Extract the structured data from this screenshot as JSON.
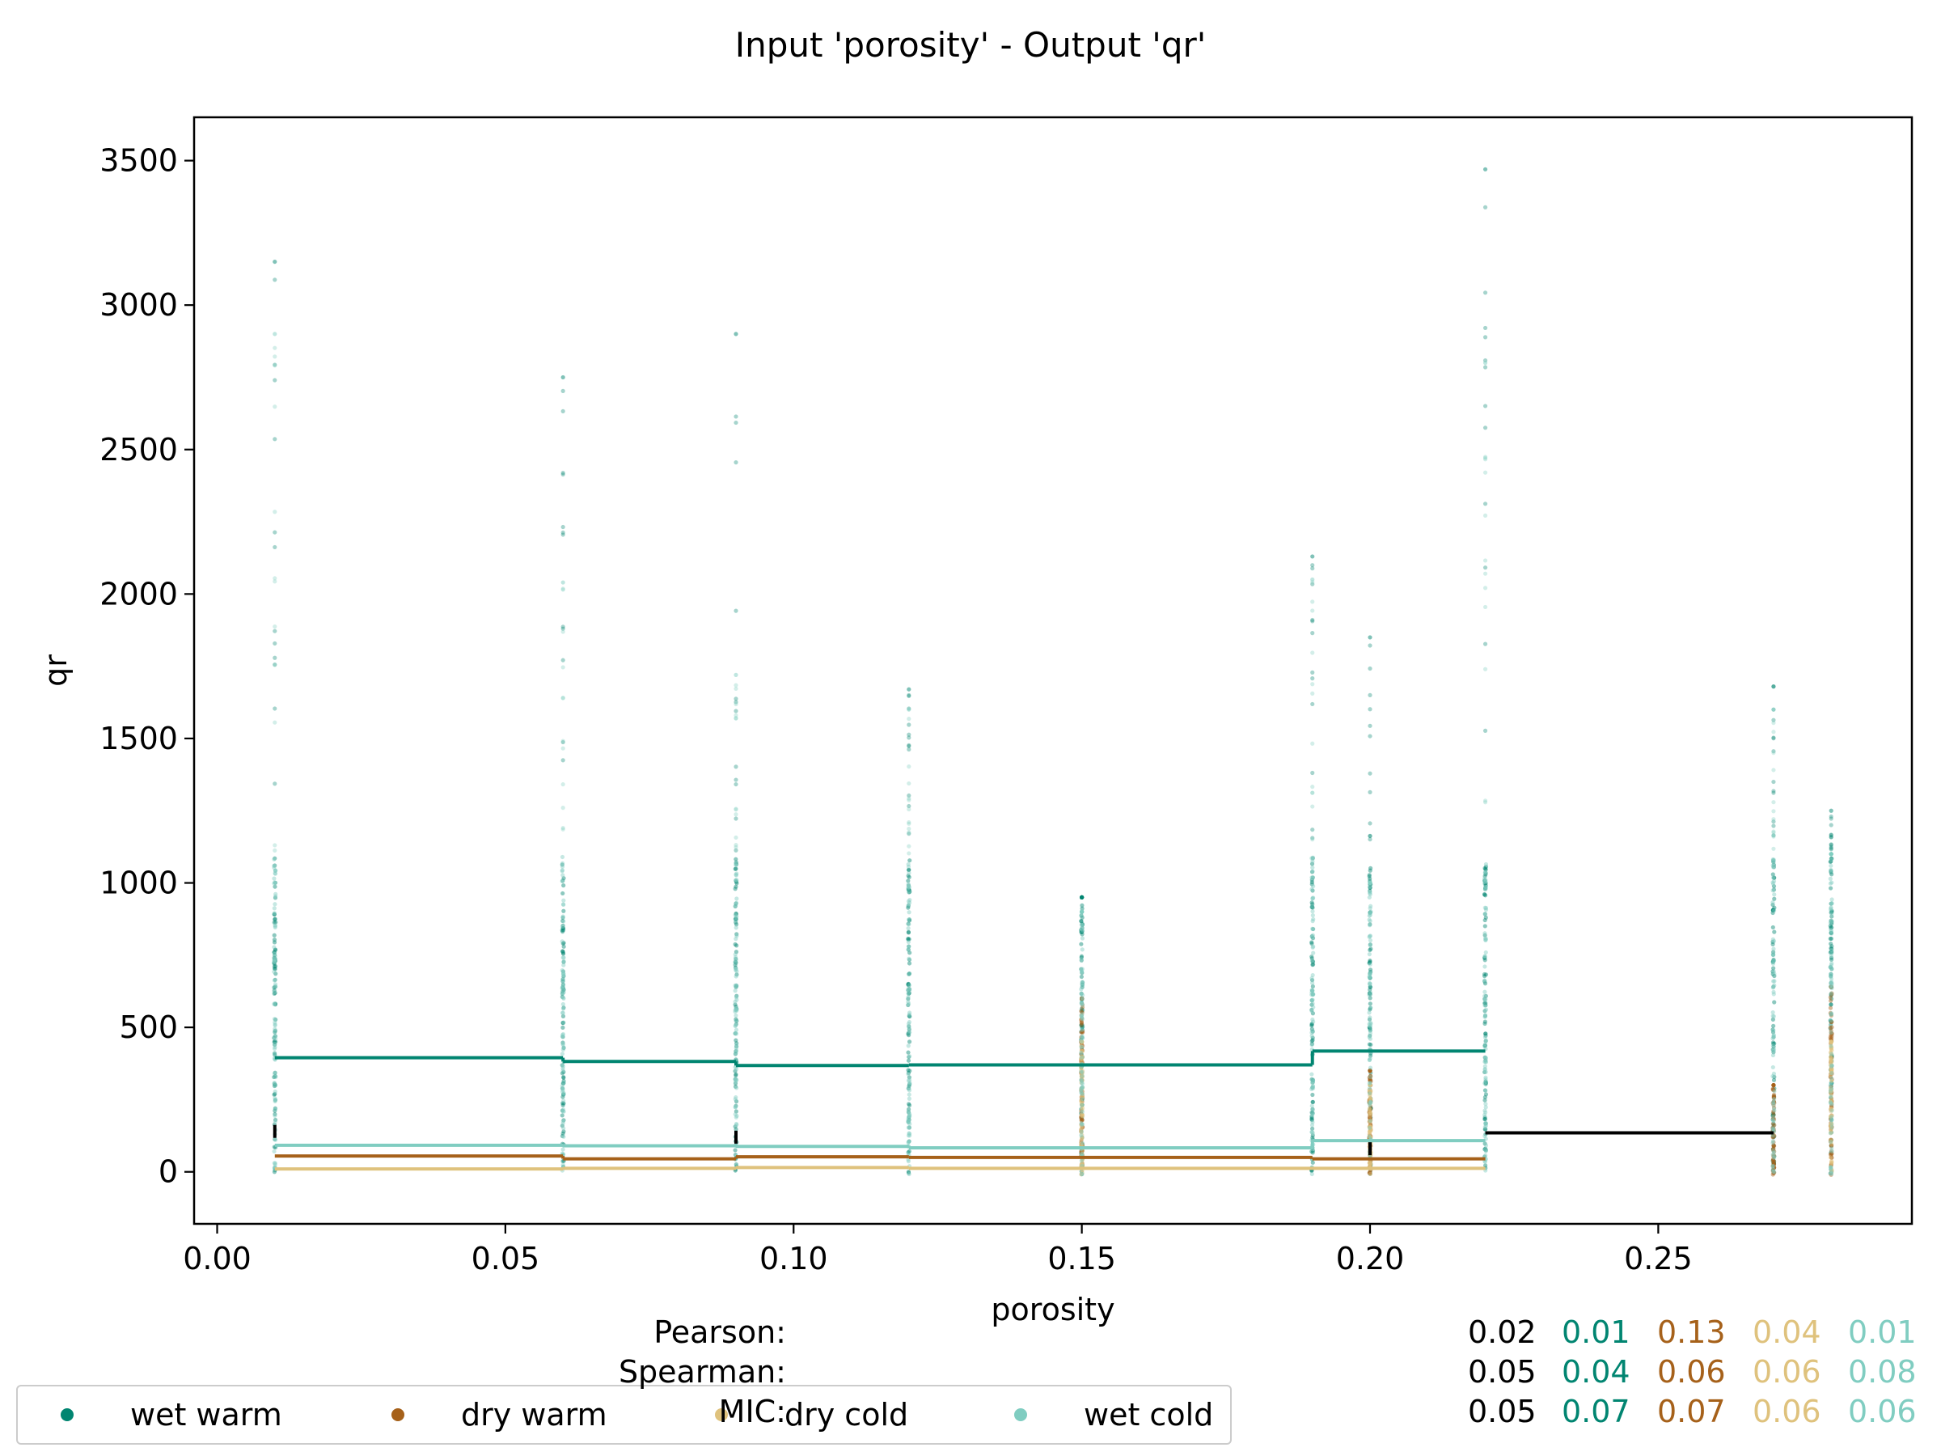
{
  "chart_data": {
    "type": "scatter",
    "title": "Input 'porosity' - Output 'qr'",
    "xlabel": "porosity",
    "ylabel": "qr",
    "xlim": [
      -0.004,
      0.294
    ],
    "ylim": [
      -180,
      3650
    ],
    "x_ticks": [
      "0.00",
      "0.05",
      "0.10",
      "0.15",
      "0.20",
      "0.25"
    ],
    "x_tick_values": [
      0.0,
      0.05,
      0.1,
      0.15,
      0.2,
      0.25
    ],
    "y_ticks": [
      "0",
      "500",
      "1000",
      "1500",
      "2000",
      "2500",
      "3000",
      "3500"
    ],
    "y_tick_values": [
      0,
      500,
      1000,
      1500,
      2000,
      2500,
      3000,
      3500
    ],
    "grid": false,
    "legend_position": "bottom-left",
    "series": [
      {
        "name": "wet warm",
        "color": "#018571",
        "x_levels": [
          0.01,
          0.06,
          0.09,
          0.12,
          0.15,
          0.19,
          0.2,
          0.22,
          0.27,
          0.28
        ],
        "scatter_max": [
          3150,
          2750,
          2900,
          1670,
          950,
          2130,
          1850,
          3470,
          1680,
          1250
        ],
        "mean_step": [
          [
            0.01,
            0.06,
            395
          ],
          [
            0.06,
            0.09,
            382
          ],
          [
            0.09,
            0.12,
            368
          ],
          [
            0.12,
            0.19,
            370
          ],
          [
            0.19,
            0.22,
            418
          ]
        ]
      },
      {
        "name": "dry warm",
        "color": "#a6611a",
        "x_levels": [
          0.15,
          0.2,
          0.27,
          0.28
        ],
        "scatter_max": [
          600,
          350,
          300,
          640
        ],
        "mean_step": [
          [
            0.01,
            0.06,
            55
          ],
          [
            0.06,
            0.09,
            45
          ],
          [
            0.09,
            0.12,
            52
          ],
          [
            0.12,
            0.19,
            50
          ],
          [
            0.19,
            0.22,
            45
          ]
        ]
      },
      {
        "name": "dry cold",
        "color": "#dfc27d",
        "x_levels": [
          0.15,
          0.2,
          0.28
        ],
        "scatter_max": [
          450,
          300,
          450
        ],
        "mean_step": [
          [
            0.01,
            0.06,
            10
          ],
          [
            0.06,
            0.09,
            12
          ],
          [
            0.09,
            0.12,
            15
          ],
          [
            0.12,
            0.22,
            12
          ]
        ]
      },
      {
        "name": "wet cold",
        "color": "#80cdc1",
        "x_levels": [
          0.01,
          0.06,
          0.09,
          0.12,
          0.15,
          0.19,
          0.2,
          0.22,
          0.27,
          0.28
        ],
        "scatter_max": [
          2900,
          2040,
          1720,
          1600,
          900,
          2050,
          1000,
          2800,
          1600,
          1100
        ],
        "mean_step": [
          [
            0.01,
            0.06,
            92
          ],
          [
            0.06,
            0.09,
            90
          ],
          [
            0.09,
            0.12,
            88
          ],
          [
            0.12,
            0.19,
            83
          ],
          [
            0.19,
            0.22,
            108
          ]
        ]
      },
      {
        "name": "overall",
        "color": "#000000",
        "mean_step": [
          [
            0.01,
            0.01,
            140
          ],
          [
            0.09,
            0.09,
            120
          ],
          [
            0.2,
            0.2,
            80
          ],
          [
            0.22,
            0.27,
            135
          ]
        ]
      }
    ],
    "stats": [
      {
        "label": "Pearson:",
        "overall": "0.02",
        "values": [
          "0.01",
          "0.13",
          "0.04",
          "0.01"
        ]
      },
      {
        "label": "Spearman:",
        "overall": "0.05",
        "values": [
          "0.04",
          "0.06",
          "0.06",
          "0.08"
        ]
      },
      {
        "label": "MIC:",
        "overall": "0.05",
        "values": [
          "0.07",
          "0.07",
          "0.06",
          "0.06"
        ]
      }
    ]
  },
  "legend": {
    "items": [
      {
        "label": "wet warm",
        "color": "#018571"
      },
      {
        "label": "dry warm",
        "color": "#a6611a"
      },
      {
        "label": "dry cold",
        "color": "#dfc27d"
      },
      {
        "label": "wet cold",
        "color": "#80cdc1"
      }
    ]
  }
}
